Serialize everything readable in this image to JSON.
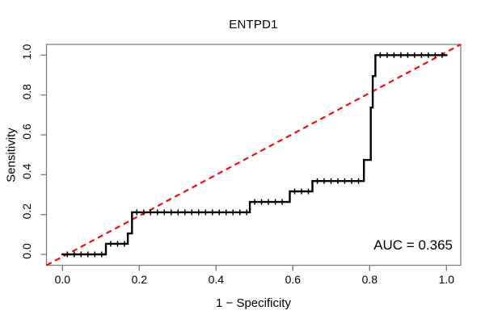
{
  "chart_data": {
    "type": "line",
    "subtype": "roc-step-curve",
    "title": "ENTPD1",
    "xlabel": "1 − Specificity",
    "ylabel": "Sensitivity",
    "annotation": "AUC = 0.365",
    "auc_value": 0.365,
    "xlim": [
      0,
      1
    ],
    "ylim": [
      0,
      1
    ],
    "grid": false,
    "x_ticks": [
      {
        "value": 0.0,
        "label": "0.0"
      },
      {
        "value": 0.2,
        "label": "0.2"
      },
      {
        "value": 0.4,
        "label": "0.4"
      },
      {
        "value": 0.6,
        "label": "0.6"
      },
      {
        "value": 0.8,
        "label": "0.8"
      },
      {
        "value": 1.0,
        "label": "1.0"
      }
    ],
    "y_ticks": [
      {
        "value": 0.0,
        "label": "0.0"
      },
      {
        "value": 0.2,
        "label": "0.2"
      },
      {
        "value": 0.4,
        "label": "0.4"
      },
      {
        "value": 0.6,
        "label": "0.6"
      },
      {
        "value": 0.8,
        "label": "0.8"
      },
      {
        "value": 1.0,
        "label": "1.0"
      }
    ],
    "series": [
      {
        "name": "ROC curve",
        "color": "#000000",
        "style": "solid-step",
        "points": [
          [
            0.0,
            0.0
          ],
          [
            0.113,
            0.0
          ],
          [
            0.113,
            0.053
          ],
          [
            0.17,
            0.053
          ],
          [
            0.17,
            0.105
          ],
          [
            0.181,
            0.105
          ],
          [
            0.181,
            0.211
          ],
          [
            0.488,
            0.211
          ],
          [
            0.488,
            0.263
          ],
          [
            0.592,
            0.263
          ],
          [
            0.592,
            0.316
          ],
          [
            0.651,
            0.316
          ],
          [
            0.651,
            0.368
          ],
          [
            0.785,
            0.368
          ],
          [
            0.785,
            0.474
          ],
          [
            0.803,
            0.474
          ],
          [
            0.803,
            0.737
          ],
          [
            0.808,
            0.737
          ],
          [
            0.808,
            0.895
          ],
          [
            0.815,
            0.895
          ],
          [
            0.815,
            1.0
          ],
          [
            1.0,
            1.0
          ]
        ]
      },
      {
        "name": "Chance diagonal",
        "color": "#ff0000",
        "style": "dashed",
        "points": [
          [
            0,
            0
          ],
          [
            1,
            1
          ]
        ]
      }
    ],
    "colors": {
      "roc": "#000000",
      "reference": "#ff0000",
      "box": "#808080",
      "text": "#000000",
      "background": "#ffffff"
    }
  }
}
